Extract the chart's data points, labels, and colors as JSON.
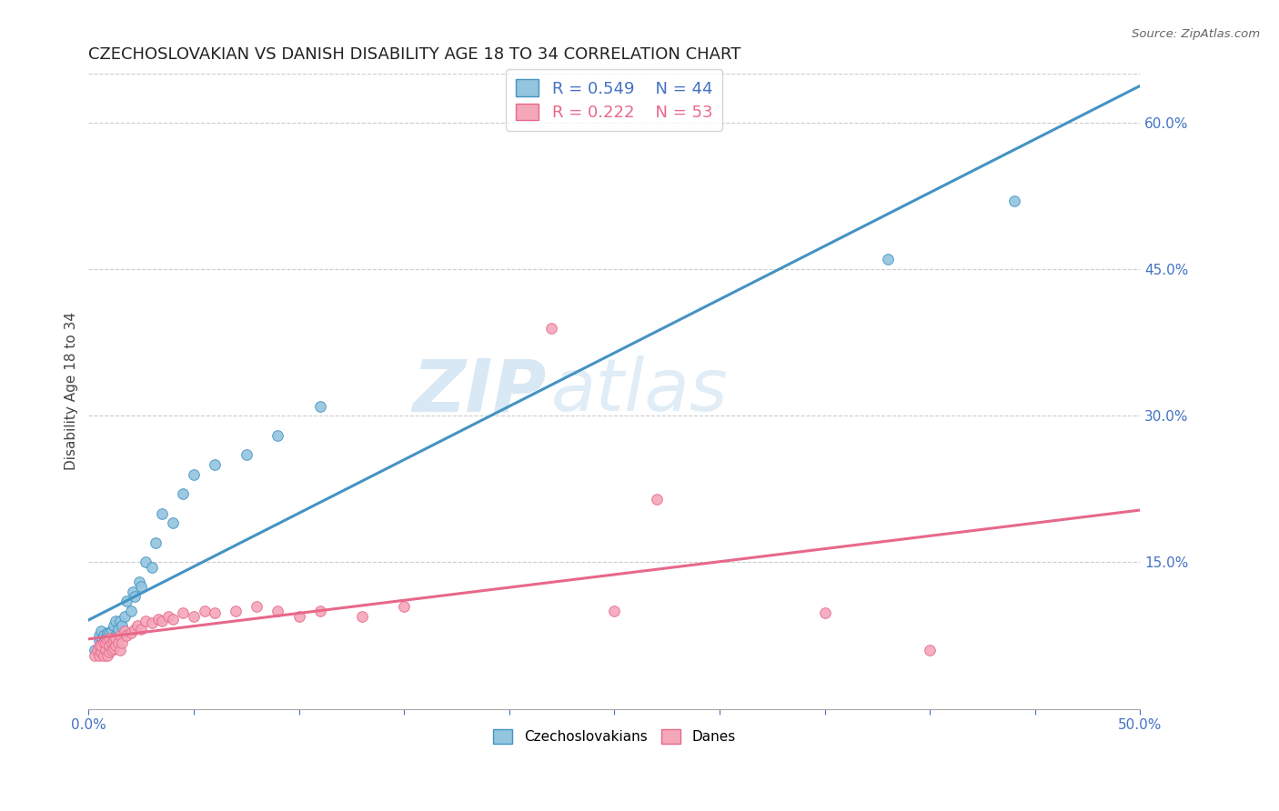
{
  "title": "CZECHOSLOVAKIAN VS DANISH DISABILITY AGE 18 TO 34 CORRELATION CHART",
  "source": "Source: ZipAtlas.com",
  "ylabel": "Disability Age 18 to 34",
  "xlim": [
    0.0,
    0.5
  ],
  "ylim": [
    0.0,
    0.65
  ],
  "xticks": [
    0.0,
    0.05,
    0.1,
    0.15,
    0.2,
    0.25,
    0.3,
    0.35,
    0.4,
    0.45,
    0.5
  ],
  "xticklabels": [
    "0.0%",
    "",
    "",
    "",
    "",
    "",
    "",
    "",
    "",
    "",
    "50.0%"
  ],
  "yticks_right": [
    0.15,
    0.3,
    0.45,
    0.6
  ],
  "ytick_right_labels": [
    "15.0%",
    "30.0%",
    "45.0%",
    "60.0%"
  ],
  "blue_color": "#92c5de",
  "blue_edge": "#4393c3",
  "pink_color": "#f4a7b9",
  "pink_edge": "#e8688a",
  "blue_line_color": "#4393c3",
  "pink_line_color": "#e8688a",
  "R_blue": 0.549,
  "N_blue": 44,
  "R_pink": 0.222,
  "N_pink": 53,
  "blue_scatter_x": [
    0.003,
    0.005,
    0.005,
    0.006,
    0.006,
    0.007,
    0.007,
    0.008,
    0.008,
    0.009,
    0.009,
    0.01,
    0.01,
    0.01,
    0.011,
    0.011,
    0.012,
    0.012,
    0.013,
    0.013,
    0.014,
    0.015,
    0.015,
    0.016,
    0.017,
    0.018,
    0.02,
    0.021,
    0.022,
    0.024,
    0.025,
    0.027,
    0.03,
    0.032,
    0.035,
    0.04,
    0.045,
    0.05,
    0.06,
    0.075,
    0.09,
    0.11,
    0.38,
    0.44
  ],
  "blue_scatter_y": [
    0.06,
    0.07,
    0.075,
    0.065,
    0.08,
    0.068,
    0.075,
    0.06,
    0.072,
    0.065,
    0.078,
    0.06,
    0.07,
    0.078,
    0.068,
    0.08,
    0.072,
    0.085,
    0.075,
    0.09,
    0.082,
    0.072,
    0.09,
    0.085,
    0.095,
    0.11,
    0.1,
    0.12,
    0.115,
    0.13,
    0.125,
    0.15,
    0.145,
    0.17,
    0.2,
    0.19,
    0.22,
    0.24,
    0.25,
    0.26,
    0.28,
    0.31,
    0.46,
    0.52
  ],
  "pink_scatter_x": [
    0.003,
    0.004,
    0.005,
    0.005,
    0.006,
    0.006,
    0.007,
    0.007,
    0.008,
    0.008,
    0.009,
    0.009,
    0.01,
    0.01,
    0.01,
    0.011,
    0.011,
    0.012,
    0.012,
    0.013,
    0.013,
    0.014,
    0.015,
    0.015,
    0.016,
    0.017,
    0.018,
    0.02,
    0.022,
    0.023,
    0.025,
    0.027,
    0.03,
    0.033,
    0.035,
    0.038,
    0.04,
    0.045,
    0.05,
    0.055,
    0.06,
    0.07,
    0.08,
    0.09,
    0.1,
    0.11,
    0.13,
    0.15,
    0.22,
    0.25,
    0.27,
    0.35,
    0.4
  ],
  "pink_scatter_y": [
    0.055,
    0.06,
    0.055,
    0.065,
    0.058,
    0.065,
    0.055,
    0.068,
    0.06,
    0.068,
    0.055,
    0.07,
    0.058,
    0.065,
    0.072,
    0.06,
    0.068,
    0.062,
    0.07,
    0.065,
    0.072,
    0.068,
    0.06,
    0.075,
    0.068,
    0.08,
    0.075,
    0.078,
    0.082,
    0.085,
    0.082,
    0.09,
    0.088,
    0.092,
    0.09,
    0.095,
    0.092,
    0.098,
    0.095,
    0.1,
    0.098,
    0.1,
    0.105,
    0.1,
    0.095,
    0.1,
    0.095,
    0.105,
    0.39,
    0.1,
    0.215,
    0.098,
    0.06
  ],
  "watermark_zip": "ZIP",
  "watermark_atlas": "atlas",
  "title_fontsize": 13,
  "label_fontsize": 11,
  "tick_fontsize": 11,
  "legend_fontsize": 13
}
